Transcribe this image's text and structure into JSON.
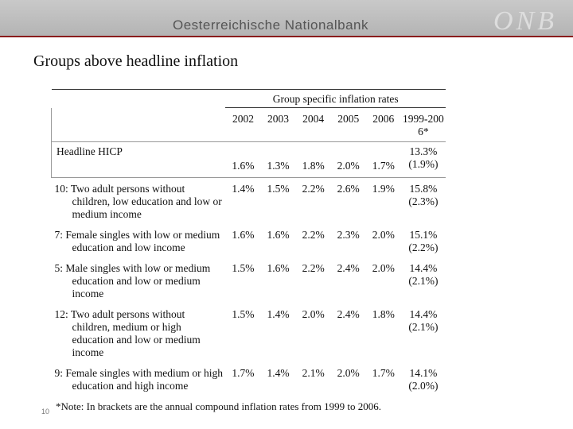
{
  "header": {
    "bank_name": "Oesterreichische Nationalbank",
    "logo": "ONB"
  },
  "title": "Groups above headline inflation",
  "table": {
    "caption": "Group specific inflation rates",
    "columns": [
      "2002",
      "2003",
      "2004",
      "2005",
      "2006",
      "1999-2006*"
    ],
    "headline": {
      "label": "Headline HICP",
      "values": [
        "1.6%",
        "1.3%",
        "1.8%",
        "2.0%",
        "1.7%"
      ],
      "total": "13.3%",
      "annual": "(1.9%)"
    },
    "rows": [
      {
        "label": "10: Two adult persons without children, low education and low or medium income",
        "values": [
          "1.4%",
          "1.5%",
          "2.2%",
          "2.6%",
          "1.9%"
        ],
        "total": "15.8%",
        "annual": "(2.3%)"
      },
      {
        "label": "7: Female singles with low or medium education and low income",
        "values": [
          "1.6%",
          "1.6%",
          "2.2%",
          "2.3%",
          "2.0%"
        ],
        "total": "15.1%",
        "annual": "(2.2%)"
      },
      {
        "label": "5: Male singles with low or medium education and low or medium income",
        "values": [
          "1.5%",
          "1.6%",
          "2.2%",
          "2.4%",
          "2.0%"
        ],
        "total": "14.4%",
        "annual": "(2.1%)"
      },
      {
        "label": "12: Two adult persons without children, medium or high education and low or medium income",
        "values": [
          "1.5%",
          "1.4%",
          "2.0%",
          "2.4%",
          "1.8%"
        ],
        "total": "14.4%",
        "annual": "(2.1%)"
      },
      {
        "label": "9: Female singles with medium or high education and high income",
        "values": [
          "1.7%",
          "1.4%",
          "2.1%",
          "2.0%",
          "1.7%"
        ],
        "total": "14.1%",
        "annual": "(2.0%)"
      }
    ],
    "note": "*Note: In brackets are the annual compound inflation rates from 1999 to 2006."
  },
  "page_number": "10"
}
